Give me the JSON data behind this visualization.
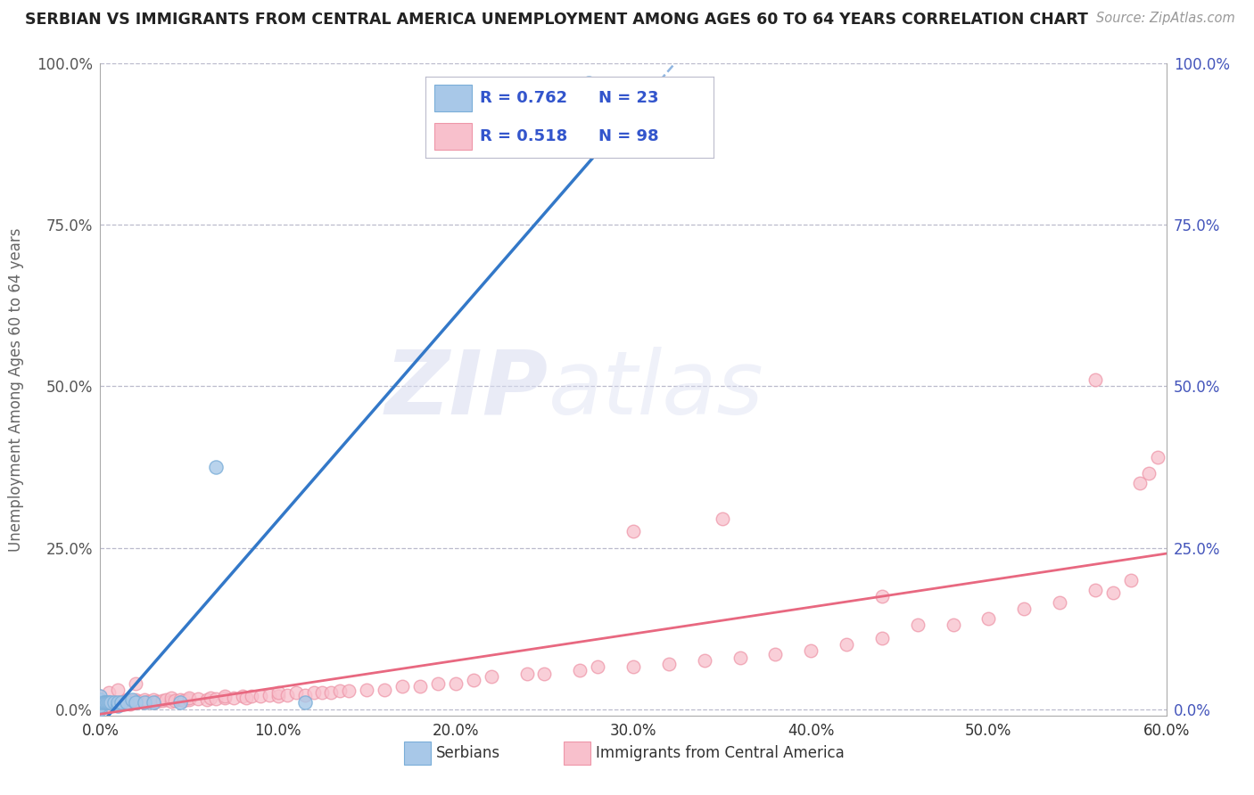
{
  "title": "SERBIAN VS IMMIGRANTS FROM CENTRAL AMERICA UNEMPLOYMENT AMONG AGES 60 TO 64 YEARS CORRELATION CHART",
  "source": "Source: ZipAtlas.com",
  "ylabel": "Unemployment Among Ages 60 to 64 years",
  "xlim": [
    0.0,
    0.6
  ],
  "ylim": [
    -0.01,
    1.0
  ],
  "x_tick_vals": [
    0.0,
    0.1,
    0.2,
    0.3,
    0.4,
    0.5,
    0.6
  ],
  "y_tick_vals": [
    0.0,
    0.25,
    0.5,
    0.75,
    1.0
  ],
  "legend_r_blue": "R = 0.762",
  "legend_n_blue": "N = 23",
  "legend_r_pink": "R = 0.518",
  "legend_n_pink": "N = 98",
  "blue_fill": "#A8C8E8",
  "blue_edge": "#7AAED8",
  "pink_fill": "#F8C0CC",
  "pink_edge": "#EE96A8",
  "blue_line_color": "#3378C8",
  "pink_line_color": "#E86880",
  "watermark_zip": "ZIP",
  "watermark_atlas": "atlas",
  "bg_color": "#FFFFFF",
  "grid_color": "#BBBBCC",
  "right_tick_color": "#4455BB",
  "left_tick_color": "#555555",
  "serbian_x": [
    0.0,
    0.0,
    0.0,
    0.0,
    0.0,
    0.002,
    0.003,
    0.004,
    0.005,
    0.006,
    0.008,
    0.01,
    0.01,
    0.012,
    0.015,
    0.018,
    0.02,
    0.025,
    0.03,
    0.045,
    0.065,
    0.115,
    0.275
  ],
  "serbian_y": [
    0.0,
    0.005,
    0.01,
    0.015,
    0.02,
    0.01,
    0.01,
    0.01,
    0.01,
    0.01,
    0.01,
    0.005,
    0.01,
    0.01,
    0.01,
    0.015,
    0.01,
    0.01,
    0.01,
    0.01,
    0.375,
    0.01,
    0.97
  ],
  "ca_x": [
    0.0,
    0.0,
    0.001,
    0.002,
    0.003,
    0.004,
    0.005,
    0.005,
    0.007,
    0.008,
    0.009,
    0.01,
    0.01,
    0.012,
    0.013,
    0.015,
    0.015,
    0.017,
    0.018,
    0.02,
    0.02,
    0.022,
    0.025,
    0.025,
    0.027,
    0.03,
    0.03,
    0.032,
    0.035,
    0.037,
    0.04,
    0.04,
    0.042,
    0.045,
    0.047,
    0.05,
    0.05,
    0.055,
    0.06,
    0.062,
    0.065,
    0.07,
    0.07,
    0.075,
    0.08,
    0.082,
    0.085,
    0.09,
    0.095,
    0.1,
    0.1,
    0.105,
    0.11,
    0.115,
    0.12,
    0.125,
    0.13,
    0.135,
    0.14,
    0.15,
    0.16,
    0.17,
    0.18,
    0.19,
    0.2,
    0.21,
    0.22,
    0.24,
    0.25,
    0.27,
    0.28,
    0.3,
    0.32,
    0.34,
    0.36,
    0.38,
    0.4,
    0.42,
    0.44,
    0.46,
    0.48,
    0.5,
    0.52,
    0.54,
    0.56,
    0.57,
    0.58,
    0.585,
    0.59,
    0.595,
    0.0,
    0.005,
    0.01,
    0.02,
    0.3,
    0.35,
    0.44,
    0.56
  ],
  "ca_y": [
    0.005,
    0.01,
    0.008,
    0.007,
    0.006,
    0.01,
    0.005,
    0.012,
    0.008,
    0.01,
    0.009,
    0.01,
    0.007,
    0.012,
    0.008,
    0.01,
    0.015,
    0.008,
    0.012,
    0.01,
    0.015,
    0.012,
    0.01,
    0.015,
    0.012,
    0.01,
    0.015,
    0.012,
    0.013,
    0.015,
    0.012,
    0.018,
    0.013,
    0.015,
    0.013,
    0.015,
    0.018,
    0.016,
    0.015,
    0.018,
    0.016,
    0.018,
    0.02,
    0.018,
    0.02,
    0.018,
    0.02,
    0.02,
    0.022,
    0.02,
    0.025,
    0.022,
    0.025,
    0.022,
    0.025,
    0.025,
    0.025,
    0.028,
    0.028,
    0.03,
    0.03,
    0.035,
    0.035,
    0.04,
    0.04,
    0.045,
    0.05,
    0.055,
    0.055,
    0.06,
    0.065,
    0.065,
    0.07,
    0.075,
    0.08,
    0.085,
    0.09,
    0.1,
    0.11,
    0.13,
    0.13,
    0.14,
    0.155,
    0.165,
    0.185,
    0.18,
    0.2,
    0.35,
    0.365,
    0.39,
    0.02,
    0.025,
    0.03,
    0.04,
    0.275,
    0.295,
    0.175,
    0.51
  ]
}
